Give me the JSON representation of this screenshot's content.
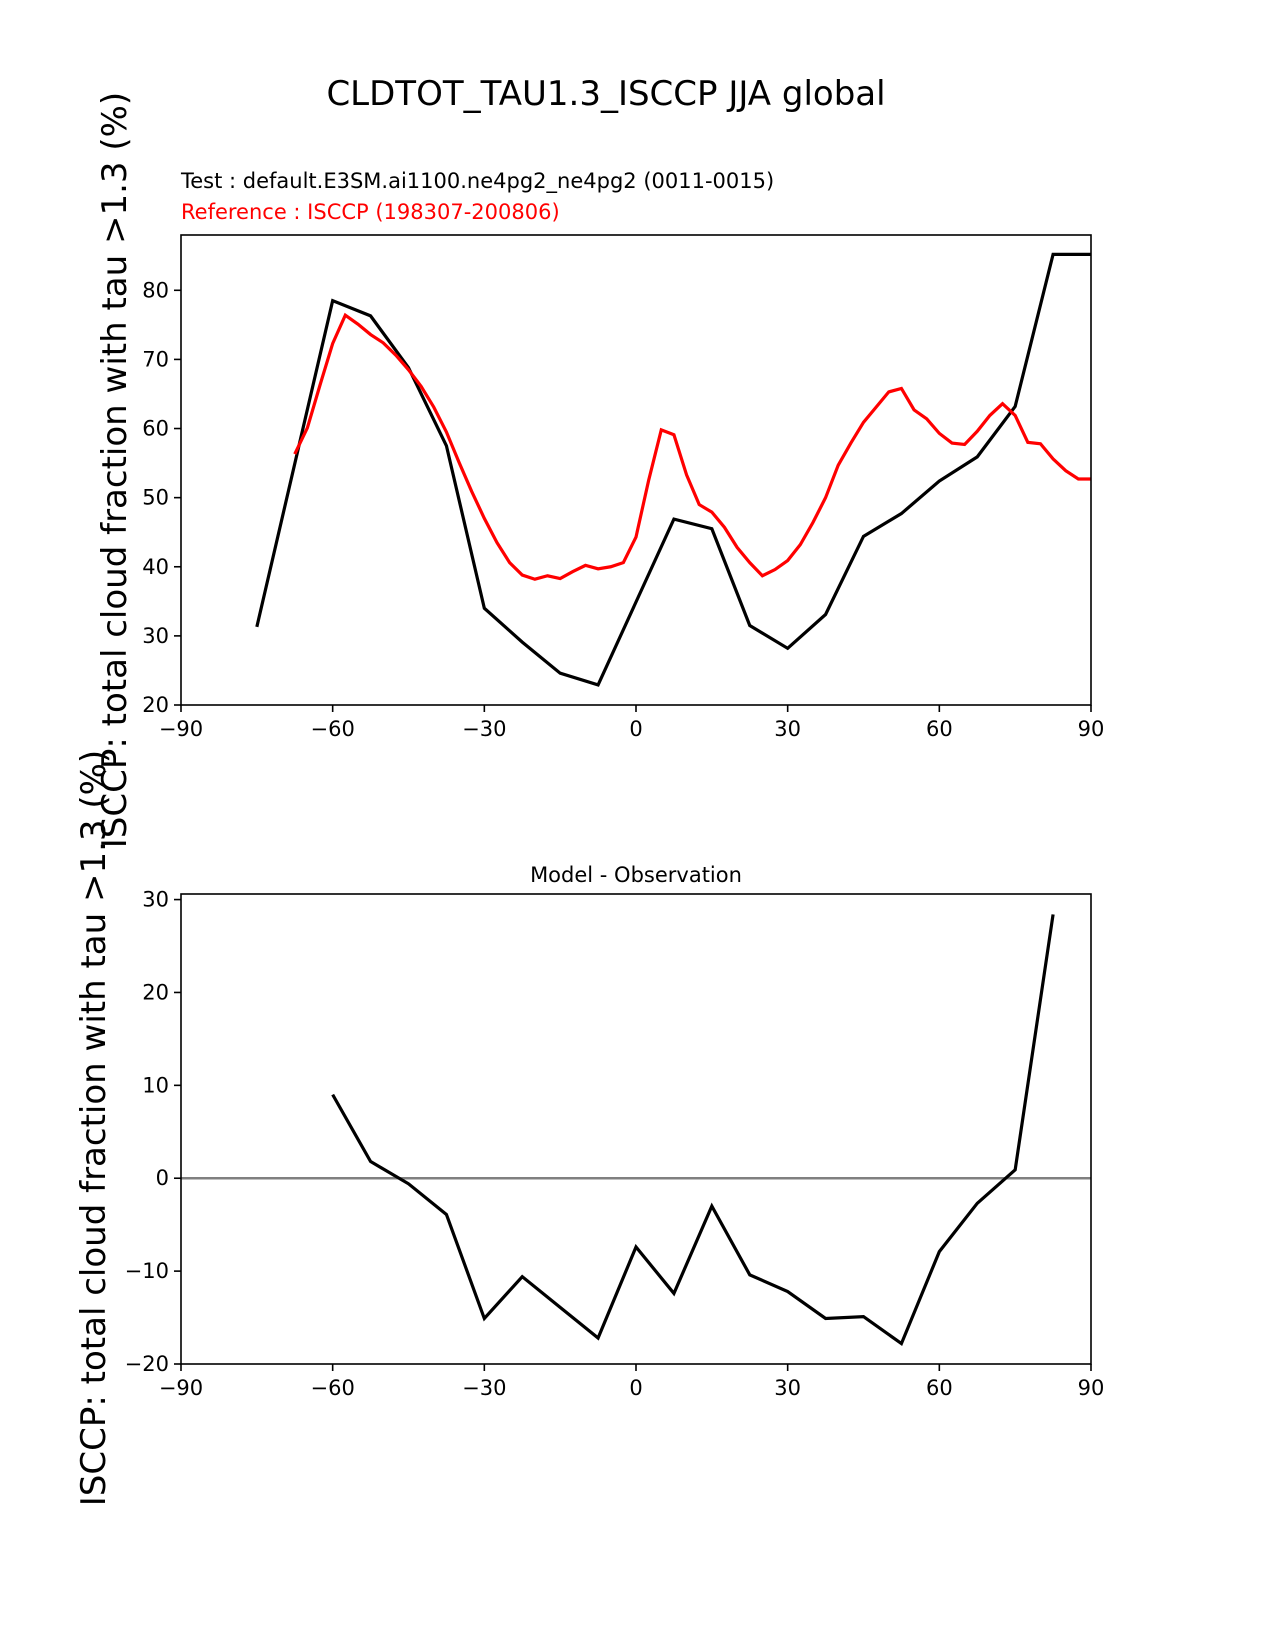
{
  "figure": {
    "suptitle": "CLDTOT_TAU1.3_ISCCP JJA global",
    "ylabel": "ISCCP: total cloud fraction with tau >1.3 (%)"
  },
  "colors": {
    "test": "#000000",
    "reference": "#ff0000",
    "zero_line": "#808080",
    "axes": "#000000"
  },
  "chart_data": [
    {
      "type": "line",
      "test_label": "Test : default.E3SM.ai1100.ne4pg2_ne4pg2 (0011-0015)",
      "ref_label": "Reference : ISCCP (198307-200806)",
      "xlim": [
        -90,
        90
      ],
      "ylim": [
        20,
        88
      ],
      "xticks": [
        -90,
        -60,
        -30,
        0,
        30,
        60,
        90
      ],
      "xtick_labels": [
        "−90",
        "−60",
        "−30",
        "0",
        "30",
        "60",
        "90"
      ],
      "yticks": [
        20,
        30,
        40,
        50,
        60,
        70,
        80
      ],
      "ytick_labels": [
        "20",
        "30",
        "40",
        "50",
        "60",
        "70",
        "80"
      ],
      "series": [
        {
          "name": "test",
          "color": "#000000",
          "x": [
            -75,
            -60,
            -52.5,
            -45,
            -37.5,
            -30,
            -22.5,
            -15,
            -7.5,
            0,
            7.5,
            15,
            22.5,
            30,
            37.5,
            45,
            52.5,
            60,
            67.5,
            75,
            82.5,
            90
          ],
          "y": [
            31.3,
            78.5,
            76.3,
            68.8,
            57.5,
            34.0,
            29.1,
            24.6,
            22.9,
            34.9,
            46.9,
            45.5,
            31.5,
            28.2,
            33.1,
            44.4,
            47.7,
            52.4,
            55.9,
            63.2,
            85.2,
            85.2
          ]
        },
        {
          "name": "reference",
          "color": "#ff0000",
          "x": [
            -67.5,
            -65,
            -62.5,
            -60,
            -57.5,
            -55,
            -52.5,
            -50,
            -47.5,
            -45,
            -42.5,
            -40,
            -37.5,
            -35,
            -32.5,
            -30,
            -27.5,
            -25,
            -22.5,
            -20,
            -17.5,
            -15,
            -12.5,
            -10,
            -7.5,
            -5,
            -2.5,
            0,
            2.5,
            5,
            7.5,
            10,
            12.5,
            15,
            17.5,
            20,
            22.5,
            25,
            27.5,
            30,
            32.5,
            35,
            37.5,
            40,
            42.5,
            45,
            47.5,
            50,
            52.5,
            55,
            57.5,
            60,
            62.5,
            65,
            67.5,
            70,
            72.5,
            75,
            77.5,
            80,
            82.5,
            85,
            87.5,
            90
          ],
          "y": [
            56.3,
            60.1,
            66.3,
            72.3,
            76.4,
            75.1,
            73.6,
            72.4,
            70.6,
            68.5,
            66.1,
            63.1,
            59.5,
            55.1,
            50.9,
            47.0,
            43.5,
            40.6,
            38.8,
            38.2,
            38.7,
            38.3,
            39.3,
            40.2,
            39.7,
            40.0,
            40.6,
            44.3,
            52.5,
            59.8,
            59.1,
            53.3,
            49.0,
            47.9,
            45.7,
            42.8,
            40.6,
            38.7,
            39.6,
            40.9,
            43.2,
            46.4,
            50.0,
            54.7,
            57.9,
            60.9,
            63.1,
            65.3,
            65.8,
            62.7,
            61.4,
            59.3,
            57.9,
            57.7,
            59.6,
            61.9,
            63.6,
            61.9,
            58.0,
            57.8,
            55.6,
            53.9,
            52.7,
            52.7
          ]
        }
      ]
    },
    {
      "type": "line",
      "title": "Model - Observation",
      "xlim": [
        -90,
        90
      ],
      "ylim": [
        -20,
        30.6
      ],
      "xticks": [
        -90,
        -60,
        -30,
        0,
        30,
        60,
        90
      ],
      "xtick_labels": [
        "−90",
        "−60",
        "−30",
        "0",
        "30",
        "60",
        "90"
      ],
      "yticks": [
        -20,
        -10,
        0,
        10,
        20,
        30
      ],
      "ytick_labels": [
        "−20",
        "−10",
        "0",
        "10",
        "20",
        "30"
      ],
      "hline": 0,
      "series": [
        {
          "name": "difference",
          "color": "#000000",
          "x": [
            -60,
            -52.5,
            -45,
            -37.5,
            -30,
            -22.5,
            -15,
            -7.5,
            0,
            7.5,
            15,
            22.5,
            30,
            37.5,
            45,
            52.5,
            60,
            67.5,
            75,
            82.5
          ],
          "y": [
            9.0,
            1.8,
            -0.6,
            -3.9,
            -15.1,
            -10.6,
            -13.9,
            -17.2,
            -7.4,
            -12.4,
            -3.0,
            -10.4,
            -12.2,
            -15.1,
            -14.9,
            -17.8,
            -7.9,
            -2.7,
            0.9,
            28.4
          ]
        }
      ]
    }
  ]
}
